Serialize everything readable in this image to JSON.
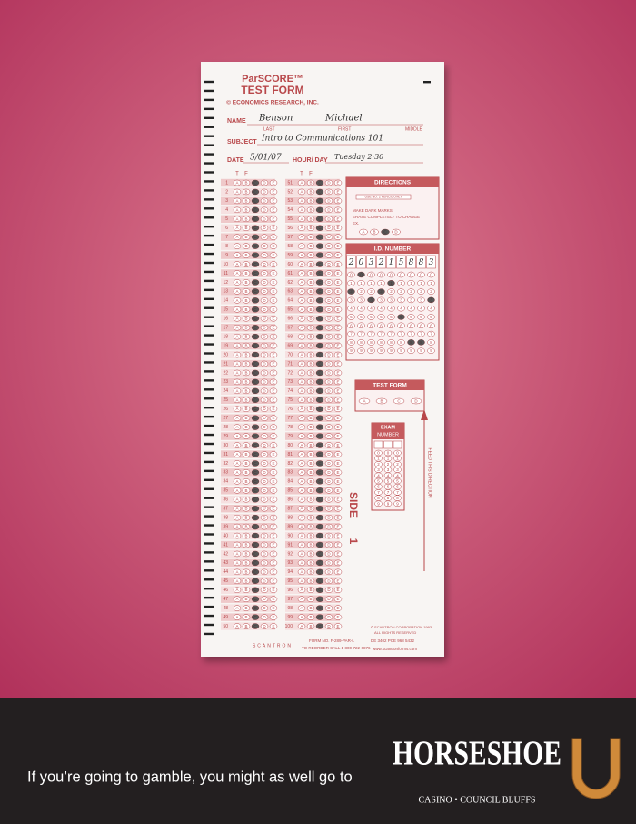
{
  "form": {
    "title": "ParSCORE™",
    "subtitle": "TEST FORM",
    "publisher": "© ECONOMICS RESEARCH, INC.",
    "name": {
      "label": "NAME",
      "last": "Benson",
      "first": "Michael",
      "captions": [
        "LAST",
        "FIRST",
        "MIDDLE"
      ]
    },
    "subject": {
      "label": "SUBJECT",
      "value": "Intro to Communications 101"
    },
    "date": {
      "label": "DATE",
      "value": "5/01/07"
    },
    "hour": {
      "label": "HOUR/ DAY",
      "value": "Tuesday 2:30"
    },
    "tf": [
      "T",
      "F"
    ],
    "choices": [
      "A",
      "B",
      "C",
      "D",
      "E"
    ],
    "questions_left": [
      1,
      2,
      3,
      4,
      5,
      6,
      7,
      8,
      9,
      10,
      11,
      12,
      13,
      14,
      15,
      16,
      17,
      18,
      19,
      20,
      21,
      22,
      23,
      24,
      25,
      26,
      27,
      28,
      29,
      30,
      31,
      32,
      33,
      34,
      35,
      36,
      37,
      38,
      39,
      40,
      41,
      42,
      43,
      44,
      45,
      46,
      47,
      48,
      49,
      50
    ],
    "questions_right": [
      51,
      52,
      53,
      54,
      55,
      56,
      57,
      58,
      59,
      60,
      61,
      62,
      63,
      64,
      65,
      66,
      67,
      68,
      69,
      70,
      71,
      72,
      73,
      74,
      75,
      76,
      77,
      78,
      79,
      80,
      81,
      82,
      83,
      84,
      85,
      86,
      87,
      88,
      89,
      90,
      91,
      92,
      93,
      94,
      95,
      96,
      97,
      98,
      99,
      100
    ],
    "directions": {
      "title": "DIRECTIONS",
      "pencil": "USE NO. 2 PENCIL ONLY",
      "items": [
        "MAKE DARK MARKS",
        "ERASE COMPLETELY TO CHANGE",
        "EX."
      ]
    },
    "id_number": {
      "title": "I.D. NUMBER",
      "digits": [
        "2",
        "0",
        "3",
        "2",
        "1",
        "5",
        "8",
        "8",
        "3"
      ],
      "scale": [
        0,
        1,
        2,
        3,
        4,
        5,
        6,
        7,
        8,
        9
      ]
    },
    "test_form": {
      "title": "TEST FORM",
      "options": [
        "A",
        "B",
        "C",
        "D"
      ]
    },
    "exam": {
      "title": "EXAM",
      "subtitle": "NUMBER"
    },
    "side": "SIDE",
    "side_number": "1",
    "feed": "FEED THIS DIRECTION",
    "footer": {
      "brand": "SCANTRON",
      "form_no": "FORM NO. F-289-PAR-L",
      "reorder": "TO REORDER CALL 1-800-722-6876",
      "copyright": "© SCANTRON CORPORATION 1993",
      "rights": "ALL RIGHTS RESERVED",
      "code": "DE 3402 PCE 968 5432",
      "web": "www.scantronforms.com"
    }
  },
  "ad": {
    "tagline": "If you’re going to gamble, you might as well go to",
    "brand": "HORSESHOE",
    "location": "CASINO • COUNCIL BLUFFS"
  }
}
